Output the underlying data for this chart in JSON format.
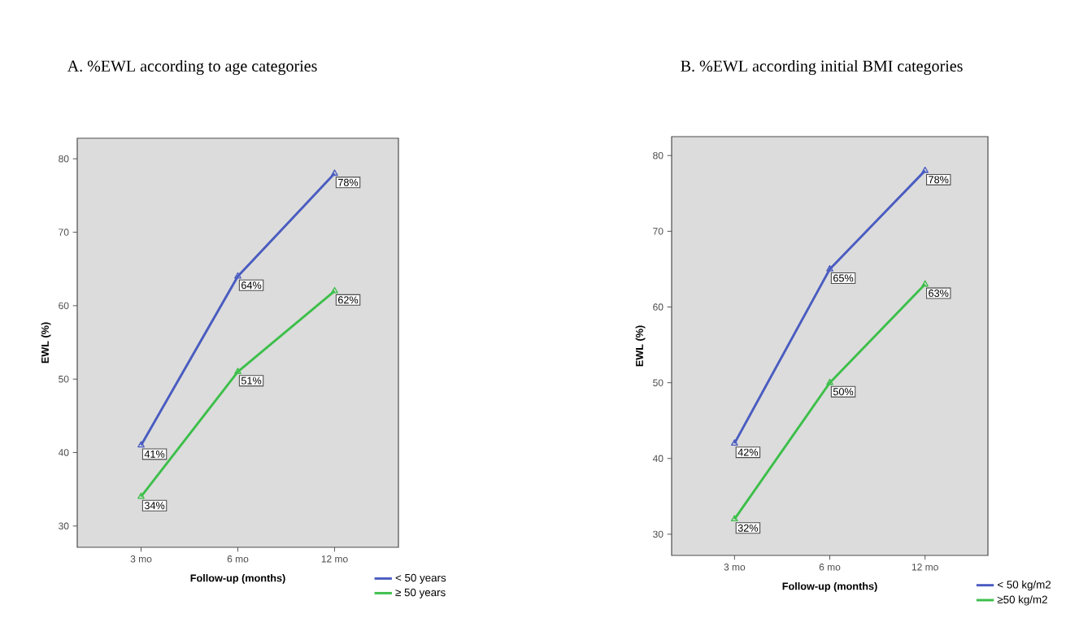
{
  "chart_data": [
    {
      "type": "line",
      "title": "A.  %EWL according to age categories",
      "xlabel": "Follow-up (months)",
      "ylabel": "EWL (%)",
      "categories": [
        "3 mo",
        "6 mo",
        "12 mo"
      ],
      "ylim": [
        27.1,
        82.8
      ],
      "yticks": [
        30,
        40,
        50,
        60,
        70,
        80
      ],
      "legend": "bottom right",
      "marker": "triangle",
      "grid": false,
      "series": [
        {
          "name": "< 50 years",
          "color": "#4a5cc0",
          "values": [
            41,
            64,
            78
          ],
          "value_labels": [
            "41%",
            "64%",
            "78%"
          ]
        },
        {
          "name": "≥ 50 years",
          "color": "#3dbf4a",
          "values": [
            34,
            51,
            62
          ],
          "value_labels": [
            "34%",
            "51%",
            "62%"
          ]
        }
      ]
    },
    {
      "type": "line",
      "title": "B. %EWL according initial BMI categories",
      "xlabel": "Follow-up (months)",
      "ylabel": "EWL (%)",
      "categories": [
        "3 mo",
        "6 mo",
        "12 mo"
      ],
      "ylim": [
        27.2,
        82.5
      ],
      "yticks": [
        30,
        40,
        50,
        60,
        70,
        80
      ],
      "legend": "bottom right",
      "marker": "triangle",
      "grid": false,
      "series": [
        {
          "name": "< 50 kg/m2",
          "color": "#4a5cc0",
          "values": [
            42,
            65,
            78
          ],
          "value_labels": [
            "42%",
            "65%",
            "78%"
          ]
        },
        {
          "name": "≥50 kg/m2",
          "color": "#3dbf4a",
          "values": [
            32,
            50,
            63
          ],
          "value_labels": [
            "32%",
            "50%",
            "63%"
          ]
        }
      ]
    }
  ]
}
